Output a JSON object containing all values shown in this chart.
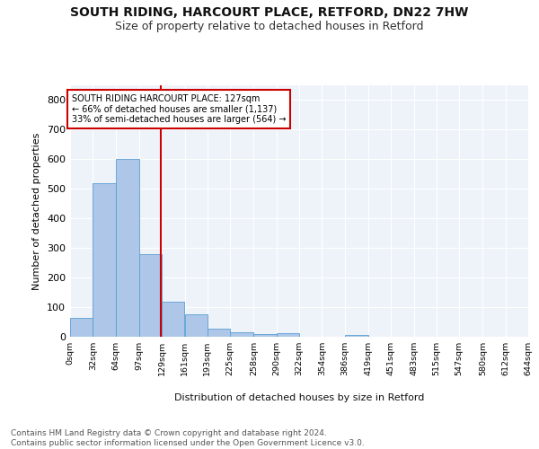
{
  "title1": "SOUTH RIDING, HARCOURT PLACE, RETFORD, DN22 7HW",
  "title2": "Size of property relative to detached houses in Retford",
  "xlabel": "Distribution of detached houses by size in Retford",
  "ylabel": "Number of detached properties",
  "footer": "Contains HM Land Registry data © Crown copyright and database right 2024.\nContains public sector information licensed under the Open Government Licence v3.0.",
  "bin_labels": [
    "0sqm",
    "32sqm",
    "64sqm",
    "97sqm",
    "129sqm",
    "161sqm",
    "193sqm",
    "225sqm",
    "258sqm",
    "290sqm",
    "322sqm",
    "354sqm",
    "386sqm",
    "419sqm",
    "451sqm",
    "483sqm",
    "515sqm",
    "547sqm",
    "580sqm",
    "612sqm",
    "644sqm"
  ],
  "bin_edges": [
    0,
    32,
    64,
    97,
    129,
    161,
    193,
    225,
    258,
    290,
    322,
    354,
    386,
    419,
    451,
    483,
    515,
    547,
    580,
    612,
    644
  ],
  "bar_values": [
    65,
    520,
    600,
    280,
    118,
    76,
    28,
    16,
    10,
    12,
    0,
    0,
    6,
    0,
    0,
    0,
    0,
    0,
    0,
    0
  ],
  "bar_color": "#aec6e8",
  "bar_edge_color": "#5a9fd4",
  "vline_x": 127,
  "vline_color": "#cc0000",
  "annotation_text": "SOUTH RIDING HARCOURT PLACE: 127sqm\n← 66% of detached houses are smaller (1,137)\n33% of semi-detached houses are larger (564) →",
  "annotation_box_color": "#ffffff",
  "annotation_border_color": "#cc0000",
  "ylim": [
    0,
    850
  ],
  "yticks": [
    0,
    100,
    200,
    300,
    400,
    500,
    600,
    700,
    800
  ],
  "bg_color": "#eef3fa",
  "grid_color": "#ffffff",
  "title1_fontsize": 10,
  "title2_fontsize": 9,
  "footer_fontsize": 6.5,
  "xlabel_fontsize": 8,
  "ylabel_fontsize": 8
}
